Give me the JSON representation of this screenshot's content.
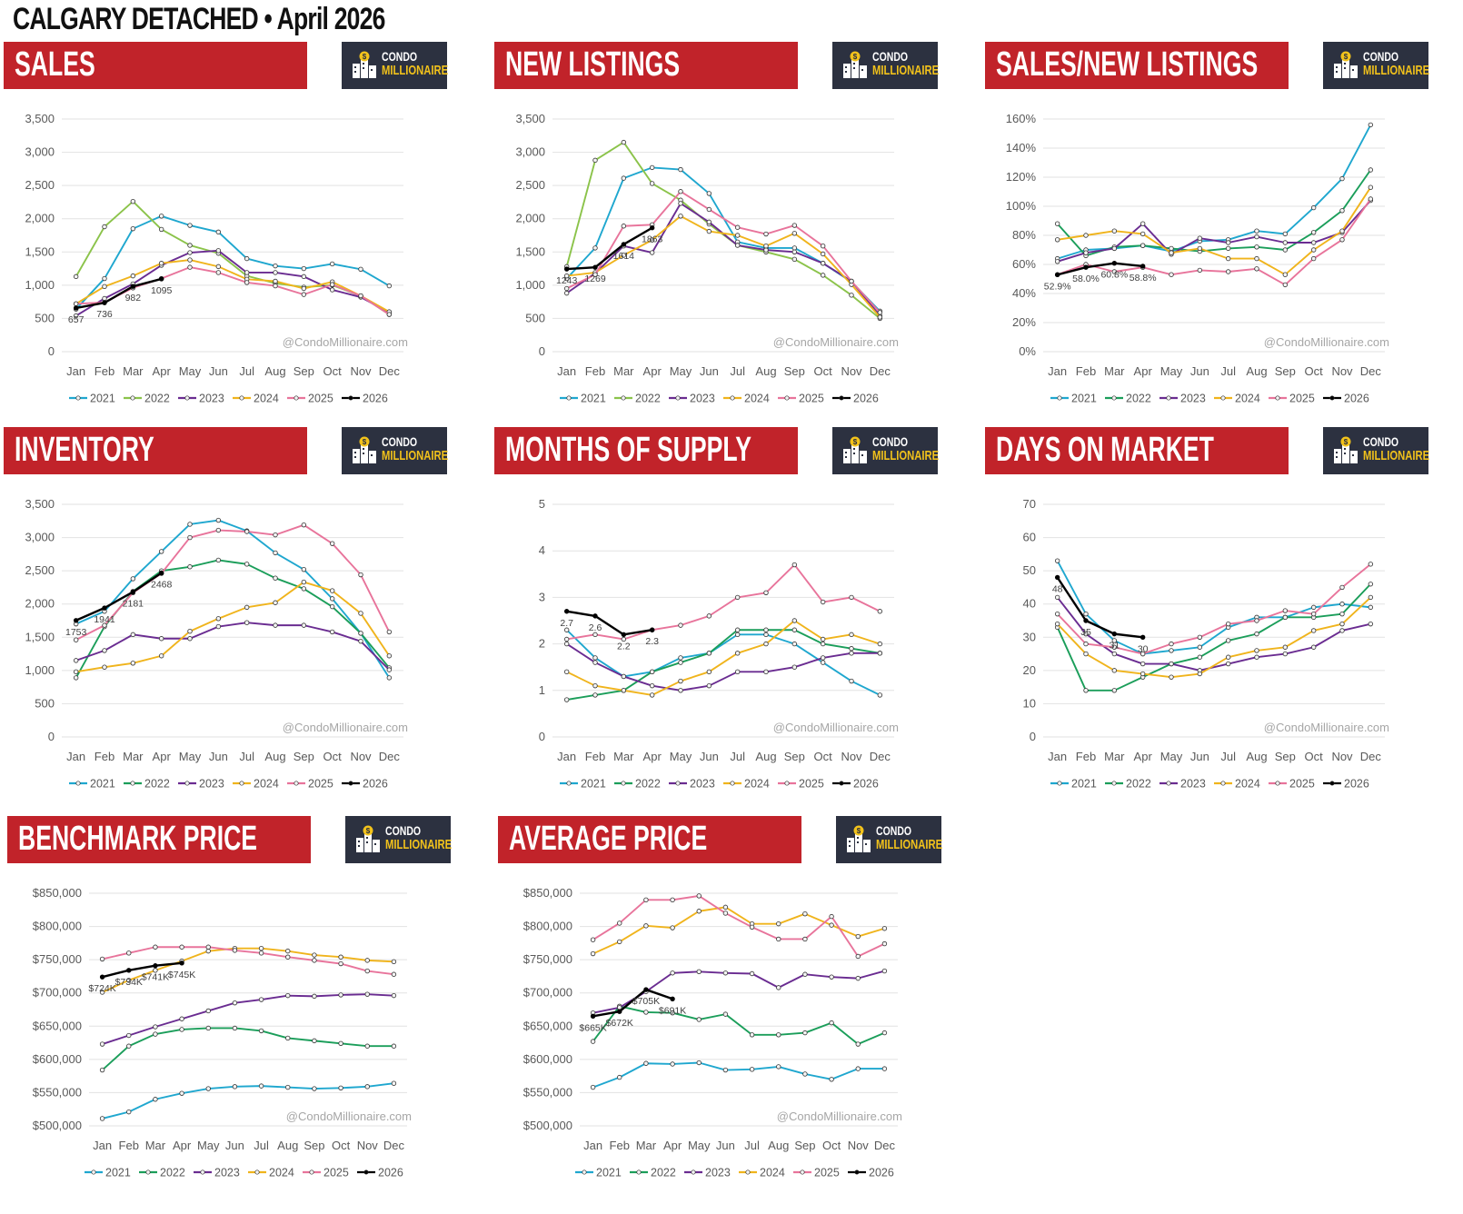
{
  "title": "CALGARY DETACHED • April 2026",
  "brand": {
    "line1": "CONDO",
    "line2": "MILLIONAIRE"
  },
  "watermark": "@CondoMillionaire.com",
  "months": [
    "Jan",
    "Feb",
    "Mar",
    "Apr",
    "May",
    "Jun",
    "Jul",
    "Aug",
    "Sep",
    "Oct",
    "Nov",
    "Dec"
  ],
  "colors": {
    "2021": "#1fa7cf",
    "2022": "#8bc34a",
    "2023": "#6a2c91",
    "2024": "#f0b41c",
    "2025": "#e8749b",
    "2026": "#000000",
    "2022alt": "#1b9e5a"
  },
  "chart_data": [
    {
      "id": "sales",
      "title": "SALES",
      "type": "line",
      "ylim": [
        0,
        3500
      ],
      "ticks": [
        0,
        500,
        1000,
        1500,
        2000,
        2500,
        3000,
        3500
      ],
      "tick_format": "comma",
      "series": [
        {
          "name": "2021",
          "color": "#1fa7cf",
          "values": [
            640,
            1100,
            1850,
            2040,
            1900,
            1800,
            1400,
            1290,
            1250,
            1320,
            1240,
            990
          ]
        },
        {
          "name": "2022",
          "color": "#8bc34a",
          "values": [
            1130,
            1880,
            2260,
            1840,
            1600,
            1480,
            1140,
            1030,
            970,
            1000,
            840,
            560
          ]
        },
        {
          "name": "2023",
          "color": "#6a2c91",
          "values": [
            540,
            800,
            1020,
            1300,
            1490,
            1520,
            1190,
            1190,
            1130,
            930,
            820,
            590
          ]
        },
        {
          "name": "2024",
          "color": "#f0b41c",
          "values": [
            720,
            980,
            1140,
            1330,
            1380,
            1280,
            1090,
            1060,
            950,
            1050,
            840,
            600
          ]
        },
        {
          "name": "2025",
          "color": "#e8749b",
          "values": [
            720,
            740,
            960,
            1100,
            1270,
            1190,
            1040,
            990,
            860,
            1010,
            840,
            560
          ]
        },
        {
          "name": "2026",
          "color": "#000000",
          "values": [
            657,
            736,
            982,
            1095
          ]
        }
      ],
      "labels": {
        "series": "2026",
        "text": [
          "657",
          "736",
          "982",
          "1095"
        ]
      }
    },
    {
      "id": "new-listings",
      "title": "NEW LISTINGS",
      "type": "line",
      "ylim": [
        0,
        3500
      ],
      "ticks": [
        0,
        500,
        1000,
        1500,
        2000,
        2500,
        3000,
        3500
      ],
      "tick_format": "comma",
      "series": [
        {
          "name": "2021",
          "color": "#1fa7cf",
          "values": [
            1100,
            1560,
            2610,
            2770,
            2740,
            2380,
            1650,
            1560,
            1560,
            1330,
            1050,
            610
          ]
        },
        {
          "name": "2022",
          "color": "#8bc34a",
          "values": [
            1280,
            2880,
            3150,
            2530,
            2280,
            1920,
            1600,
            1500,
            1390,
            1150,
            850,
            500
          ]
        },
        {
          "name": "2023",
          "color": "#6a2c91",
          "values": [
            880,
            1180,
            1590,
            1490,
            2230,
            1950,
            1600,
            1530,
            1500,
            1330,
            1060,
            540
          ]
        },
        {
          "name": "2024",
          "color": "#f0b41c",
          "values": [
            1140,
            1190,
            1450,
            1680,
            2040,
            1810,
            1750,
            1590,
            1780,
            1470,
            1010,
            520
          ]
        },
        {
          "name": "2025",
          "color": "#e8749b",
          "values": [
            950,
            1160,
            1890,
            1910,
            2410,
            2140,
            1870,
            1770,
            1900,
            1590,
            1060,
            590
          ]
        },
        {
          "name": "2026",
          "color": "#000000",
          "values": [
            1243,
            1269,
            1614,
            1863
          ]
        }
      ],
      "labels": {
        "series": "2026",
        "text": [
          "1243",
          "1269",
          "1614",
          "1863"
        ]
      }
    },
    {
      "id": "sales-new-listings",
      "title": "SALES/NEW LISTINGS",
      "type": "line",
      "ylim": [
        0,
        160
      ],
      "ticks": [
        0,
        20,
        40,
        60,
        80,
        100,
        120,
        140,
        160
      ],
      "tick_format": "percent",
      "series": [
        {
          "name": "2021",
          "color": "#1fa7cf",
          "values": [
            64,
            70,
            71,
            73,
            69,
            76,
            77,
            83,
            81,
            99,
            119,
            156
          ]
        },
        {
          "name": "2022",
          "color": "#1b9e5a",
          "values": [
            88,
            66,
            72,
            73,
            71,
            69,
            71,
            72,
            70,
            82,
            97,
            125
          ]
        },
        {
          "name": "2023",
          "color": "#6a2c91",
          "values": [
            62,
            68,
            71,
            88,
            67,
            78,
            75,
            79,
            75,
            75,
            82,
            104
          ]
        },
        {
          "name": "2024",
          "color": "#f0b41c",
          "values": [
            77,
            80,
            83,
            81,
            68,
            71,
            64,
            64,
            53,
            70,
            83,
            113
          ]
        },
        {
          "name": "2025",
          "color": "#e8749b",
          "values": [
            53,
            60,
            55,
            58,
            53,
            56,
            55,
            57,
            46,
            64,
            77,
            105
          ]
        },
        {
          "name": "2026",
          "color": "#000000",
          "values": [
            52.9,
            58.0,
            60.8,
            58.8
          ]
        }
      ],
      "labels": {
        "series": "2026",
        "text": [
          "52.9%",
          "58.0%",
          "60.8%",
          "58.8%"
        ]
      }
    },
    {
      "id": "inventory",
      "title": "INVENTORY",
      "type": "line",
      "ylim": [
        0,
        3500
      ],
      "ticks": [
        0,
        500,
        1000,
        1500,
        2000,
        2500,
        3000,
        3500
      ],
      "tick_format": "comma",
      "series": [
        {
          "name": "2021",
          "color": "#1fa7cf",
          "values": [
            1700,
            1890,
            2380,
            2790,
            3200,
            3260,
            3100,
            2770,
            2520,
            2080,
            1560,
            890
          ]
        },
        {
          "name": "2022",
          "color": "#1b9e5a",
          "values": [
            890,
            1660,
            2190,
            2500,
            2560,
            2660,
            2600,
            2390,
            2230,
            1960,
            1560,
            1040
          ]
        },
        {
          "name": "2023",
          "color": "#6a2c91",
          "values": [
            1150,
            1300,
            1540,
            1480,
            1480,
            1660,
            1720,
            1680,
            1680,
            1580,
            1440,
            1010
          ]
        },
        {
          "name": "2024",
          "color": "#f0b41c",
          "values": [
            980,
            1050,
            1110,
            1220,
            1590,
            1780,
            1950,
            2020,
            2330,
            2200,
            1860,
            1220
          ]
        },
        {
          "name": "2025",
          "color": "#e8749b",
          "values": [
            1460,
            1680,
            2170,
            2460,
            3000,
            3110,
            3090,
            3040,
            3190,
            2910,
            2440,
            1580
          ]
        },
        {
          "name": "2026",
          "color": "#000000",
          "values": [
            1753,
            1941,
            2181,
            2468
          ]
        }
      ],
      "labels": {
        "series": "2026",
        "text": [
          "1753",
          "1941",
          "2181",
          "2468"
        ]
      }
    },
    {
      "id": "months-of-supply",
      "title": "MONTHS OF SUPPLY",
      "type": "line",
      "ylim": [
        0,
        5
      ],
      "ticks": [
        0,
        1,
        2,
        3,
        4,
        5
      ],
      "tick_format": "plain",
      "series": [
        {
          "name": "2021",
          "color": "#1fa7cf",
          "values": [
            2.3,
            1.7,
            1.3,
            1.4,
            1.7,
            1.8,
            2.2,
            2.2,
            2.0,
            1.6,
            1.2,
            0.9
          ]
        },
        {
          "name": "2022",
          "color": "#1b9e5a",
          "values": [
            0.8,
            0.9,
            1.0,
            1.4,
            1.6,
            1.8,
            2.3,
            2.3,
            2.3,
            2.0,
            1.9,
            1.8
          ]
        },
        {
          "name": "2023",
          "color": "#6a2c91",
          "values": [
            2.0,
            1.6,
            1.3,
            1.1,
            1.0,
            1.1,
            1.4,
            1.4,
            1.5,
            1.7,
            1.8,
            1.8
          ]
        },
        {
          "name": "2024",
          "color": "#f0b41c",
          "values": [
            1.4,
            1.1,
            1.0,
            0.9,
            1.2,
            1.4,
            1.8,
            2.0,
            2.5,
            2.1,
            2.2,
            2.0
          ]
        },
        {
          "name": "2025",
          "color": "#e8749b",
          "values": [
            2.1,
            2.2,
            2.1,
            2.3,
            2.4,
            2.6,
            3.0,
            3.1,
            3.7,
            2.9,
            3.0,
            2.7
          ]
        },
        {
          "name": "2026",
          "color": "#000000",
          "values": [
            2.7,
            2.6,
            2.2,
            2.3
          ]
        }
      ],
      "labels": {
        "series": "2026",
        "text": [
          "2.7",
          "2.6",
          "2.2",
          "2.3"
        ]
      }
    },
    {
      "id": "days-on-market",
      "title": "DAYS ON MARKET",
      "type": "line",
      "ylim": [
        0,
        70
      ],
      "ticks": [
        0,
        10,
        20,
        30,
        40,
        50,
        60,
        70
      ],
      "tick_format": "plain",
      "series": [
        {
          "name": "2021",
          "color": "#1fa7cf",
          "values": [
            53,
            37,
            29,
            25,
            26,
            27,
            33,
            36,
            36,
            39,
            40,
            39
          ]
        },
        {
          "name": "2022",
          "color": "#1b9e5a",
          "values": [
            33,
            14,
            14,
            18,
            22,
            24,
            29,
            31,
            36,
            36,
            37,
            46
          ]
        },
        {
          "name": "2023",
          "color": "#6a2c91",
          "values": [
            42,
            31,
            25,
            22,
            22,
            20,
            22,
            24,
            25,
            27,
            32,
            34
          ]
        },
        {
          "name": "2024",
          "color": "#f0b41c",
          "values": [
            34,
            25,
            20,
            19,
            18,
            19,
            24,
            26,
            27,
            32,
            34,
            42
          ]
        },
        {
          "name": "2025",
          "color": "#e8749b",
          "values": [
            37,
            28,
            27,
            25,
            28,
            30,
            34,
            35,
            38,
            37,
            45,
            52
          ]
        },
        {
          "name": "2026",
          "color": "#000000",
          "values": [
            48,
            35,
            31,
            30
          ]
        }
      ],
      "labels": {
        "series": "2026",
        "text": [
          "48",
          "35",
          "31",
          "30"
        ]
      }
    },
    {
      "id": "benchmark-price",
      "title": "BENCHMARK PRICE",
      "type": "line",
      "ylim": [
        500000,
        850000
      ],
      "ticks": [
        500000,
        550000,
        600000,
        650000,
        700000,
        750000,
        800000,
        850000
      ],
      "tick_format": "currency",
      "series": [
        {
          "name": "2021",
          "color": "#1fa7cf",
          "values": [
            511000,
            521000,
            540000,
            549000,
            556000,
            559000,
            560000,
            558000,
            556000,
            557000,
            559000,
            564000
          ]
        },
        {
          "name": "2022",
          "color": "#1b9e5a",
          "values": [
            584000,
            620000,
            638000,
            645000,
            647000,
            647000,
            643000,
            632000,
            628000,
            624000,
            620000,
            620000
          ]
        },
        {
          "name": "2023",
          "color": "#6a2c91",
          "values": [
            623000,
            636000,
            649000,
            661000,
            673000,
            685000,
            690000,
            696000,
            695000,
            697000,
            698000,
            696000
          ]
        },
        {
          "name": "2024",
          "color": "#f0b41c",
          "values": [
            701000,
            719000,
            734000,
            748000,
            763000,
            767000,
            767000,
            763000,
            757000,
            754000,
            749000,
            747000
          ]
        },
        {
          "name": "2025",
          "color": "#e8749b",
          "values": [
            751000,
            760000,
            769000,
            769000,
            769000,
            764000,
            760000,
            754000,
            749000,
            744000,
            733000,
            728000
          ]
        },
        {
          "name": "2026",
          "color": "#000000",
          "values": [
            724000,
            734000,
            741000,
            745000
          ]
        }
      ],
      "labels": {
        "series": "2026",
        "text": [
          "$724K",
          "$734K",
          "$741K",
          "$745K"
        ]
      }
    },
    {
      "id": "average-price",
      "title": "AVERAGE PRICE",
      "type": "line",
      "ylim": [
        500000,
        850000
      ],
      "ticks": [
        500000,
        550000,
        600000,
        650000,
        700000,
        750000,
        800000,
        850000
      ],
      "tick_format": "currency",
      "series": [
        {
          "name": "2021",
          "color": "#1fa7cf",
          "values": [
            558000,
            573000,
            594000,
            593000,
            595000,
            584000,
            585000,
            589000,
            578000,
            570000,
            586000,
            586000
          ]
        },
        {
          "name": "2022",
          "color": "#1b9e5a",
          "values": [
            627000,
            680000,
            671000,
            670000,
            660000,
            668000,
            637000,
            637000,
            640000,
            655000,
            623000,
            640000
          ]
        },
        {
          "name": "2023",
          "color": "#6a2c91",
          "values": [
            670000,
            678000,
            702000,
            730000,
            732000,
            730000,
            729000,
            708000,
            728000,
            724000,
            722000,
            733000
          ]
        },
        {
          "name": "2024",
          "color": "#f0b41c",
          "values": [
            759000,
            777000,
            801000,
            798000,
            823000,
            829000,
            804000,
            804000,
            819000,
            802000,
            785000,
            797000
          ]
        },
        {
          "name": "2025",
          "color": "#e8749b",
          "values": [
            780000,
            805000,
            840000,
            840000,
            846000,
            820000,
            799000,
            781000,
            781000,
            815000,
            755000,
            774000
          ]
        },
        {
          "name": "2026",
          "color": "#000000",
          "values": [
            665000,
            672000,
            705000,
            691000
          ]
        }
      ],
      "labels": {
        "series": "2026",
        "text": [
          "$665K",
          "$672K",
          "$705K",
          "$691K"
        ]
      }
    }
  ]
}
